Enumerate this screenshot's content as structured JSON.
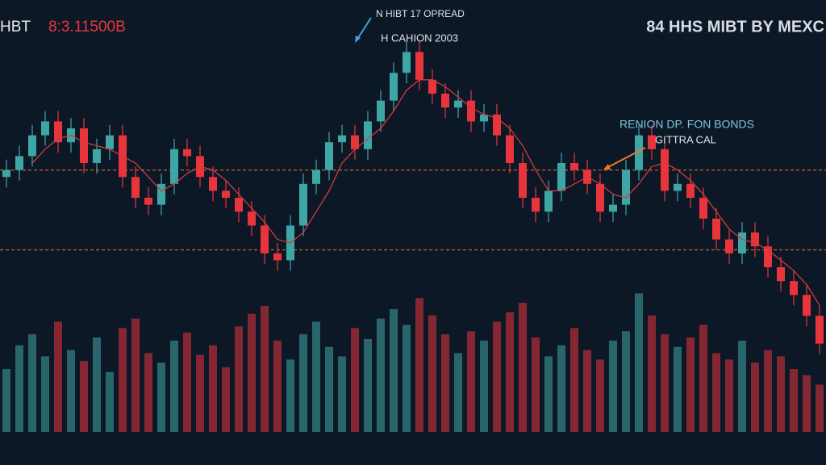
{
  "chart_data": {
    "type": "candlestick",
    "title_symbol": "HBT",
    "title_price": "8:3.11500B",
    "brand": "84 HHS MIBT BY MEXC",
    "annotations": [
      "N HIBT 17 OPREAD",
      "H CAHION 2003",
      "RENION DP. FON BONDS",
      "GITTRA CAL"
    ],
    "ylim": [
      20,
      120
    ],
    "vlim": [
      0,
      100
    ],
    "up_color": "#3fa6a6",
    "down_color": "#e8353c",
    "ma_color": "#d23a40",
    "level_color": "#c8642a",
    "levels": [
      78,
      55
    ],
    "open": [
      76,
      78,
      82,
      88,
      92,
      86,
      90,
      80,
      84,
      88,
      76,
      70,
      68,
      74,
      84,
      82,
      76,
      72,
      70,
      66,
      62,
      54,
      52,
      62,
      74,
      78,
      86,
      88,
      84,
      92,
      98,
      106,
      112,
      104,
      100,
      96,
      98,
      92,
      94,
      88,
      80,
      70,
      66,
      72,
      80,
      78,
      74,
      66,
      68,
      78,
      88,
      84,
      72,
      74,
      70,
      64,
      58,
      54,
      60,
      56,
      50,
      46,
      42,
      36
    ],
    "high": [
      81,
      85,
      91,
      95,
      95,
      93,
      93,
      87,
      91,
      91,
      79,
      73,
      77,
      87,
      87,
      85,
      79,
      75,
      73,
      69,
      65,
      57,
      65,
      77,
      81,
      89,
      91,
      91,
      95,
      101,
      109,
      115,
      115,
      107,
      103,
      101,
      101,
      97,
      97,
      91,
      83,
      73,
      75,
      83,
      83,
      81,
      77,
      71,
      81,
      91,
      91,
      87,
      77,
      77,
      73,
      67,
      61,
      63,
      63,
      59,
      53,
      49,
      45,
      39
    ],
    "low": [
      73,
      75,
      79,
      85,
      83,
      83,
      77,
      77,
      81,
      73,
      67,
      65,
      65,
      71,
      79,
      73,
      69,
      67,
      63,
      59,
      51,
      49,
      49,
      59,
      71,
      75,
      83,
      81,
      81,
      89,
      95,
      103,
      101,
      97,
      93,
      93,
      89,
      89,
      85,
      77,
      67,
      63,
      63,
      69,
      75,
      71,
      63,
      63,
      65,
      75,
      81,
      69,
      69,
      67,
      61,
      55,
      51,
      51,
      53,
      47,
      43,
      39,
      33,
      25
    ],
    "close": [
      78,
      82,
      88,
      92,
      86,
      90,
      80,
      84,
      88,
      76,
      70,
      68,
      74,
      84,
      82,
      76,
      72,
      70,
      66,
      62,
      54,
      52,
      62,
      74,
      78,
      86,
      88,
      84,
      92,
      98,
      106,
      112,
      104,
      100,
      96,
      98,
      92,
      94,
      88,
      80,
      70,
      66,
      72,
      80,
      78,
      74,
      66,
      68,
      78,
      88,
      84,
      72,
      74,
      70,
      64,
      58,
      54,
      60,
      56,
      50,
      46,
      42,
      36,
      28
    ],
    "ma": [
      null,
      null,
      80,
      84,
      87,
      88,
      86,
      85,
      84,
      82,
      80,
      76,
      72,
      74,
      77,
      79,
      78,
      75,
      71,
      67,
      63,
      58,
      57,
      60,
      66,
      72,
      80,
      84,
      87,
      90,
      95,
      101,
      104,
      104,
      102,
      99,
      96,
      94,
      93,
      90,
      85,
      78,
      72,
      72,
      74,
      76,
      74,
      71,
      70,
      74,
      79,
      80,
      78,
      75,
      71,
      66,
      61,
      58,
      57,
      55,
      52,
      49,
      45,
      39
    ],
    "volume": [
      40,
      55,
      62,
      48,
      70,
      52,
      45,
      60,
      38,
      66,
      72,
      50,
      44,
      58,
      63,
      49,
      55,
      41,
      67,
      75,
      80,
      58,
      46,
      62,
      70,
      54,
      48,
      66,
      59,
      72,
      78,
      68,
      85,
      74,
      62,
      50,
      64,
      58,
      70,
      76,
      82,
      60,
      48,
      55,
      66,
      52,
      46,
      58,
      64,
      88,
      74,
      62,
      54,
      60,
      68,
      50,
      46,
      58,
      44,
      52,
      48,
      40,
      36,
      30
    ]
  }
}
